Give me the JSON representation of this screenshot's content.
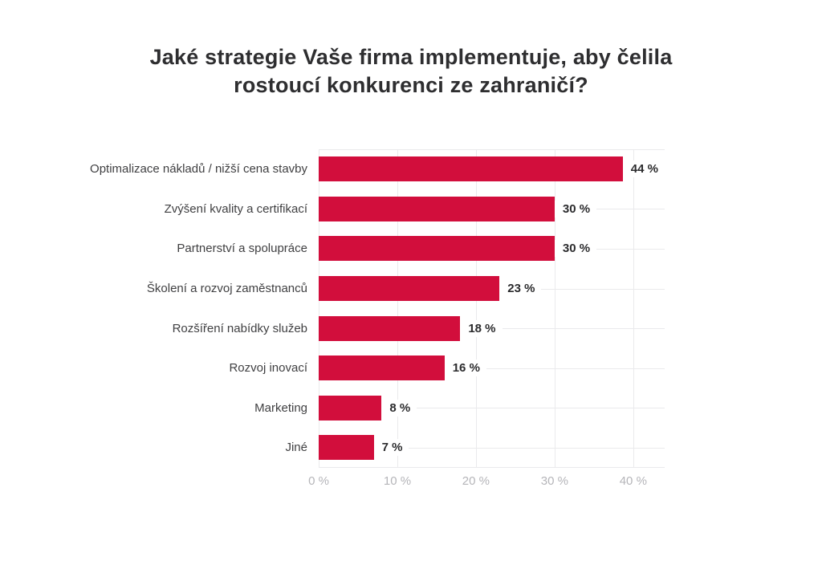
{
  "page": {
    "background": "#ffffff"
  },
  "title": {
    "text": "Jaké strategie Vaše firma implementuje, aby čelila rostoucí konkurenci ze zahraničí?",
    "line1": "Jaké strategie Vaše firma implementuje, aby čelila",
    "line2": "rostoucí konkurenci ze zahraničí?"
  },
  "chart_data": {
    "type": "bar",
    "orientation": "horizontal",
    "title": "Jaké strategie Vaše firma implementuje, aby čelila rostoucí konkurenci ze zahraničí?",
    "categories": [
      "Optimalizace nákladů / nižší cena stavby",
      "Zvýšení kvality a certifikací",
      "Partnerství a spolupráce",
      "Školení a rozvoj zaměstnanců",
      "Rozšíření nabídky služeb",
      "Rozvoj inovací",
      "Marketing",
      "Jiné"
    ],
    "values": [
      44,
      30,
      30,
      23,
      18,
      16,
      8,
      7
    ],
    "value_labels": [
      "44 %",
      "30 %",
      "30 %",
      "23 %",
      "18 %",
      "16 %",
      "8 %",
      "7 %"
    ],
    "xlabel": "",
    "ylabel": "",
    "xlim": [
      0,
      44
    ],
    "grid": true,
    "legend": false,
    "x_ticks": [
      {
        "value": 0,
        "label": "0 %"
      },
      {
        "value": 10,
        "label": "10 %"
      },
      {
        "value": 20,
        "label": "20 %"
      },
      {
        "value": 30,
        "label": "30 %"
      },
      {
        "value": 40,
        "label": "40 %"
      }
    ],
    "colors": {
      "bar": "#d20e3c",
      "grid": "#eaeaec",
      "title_text": "#2e2e30",
      "category_text": "#3f3f41",
      "value_text": "#2b2b2d",
      "tick_text": "#b5b5b9"
    }
  }
}
